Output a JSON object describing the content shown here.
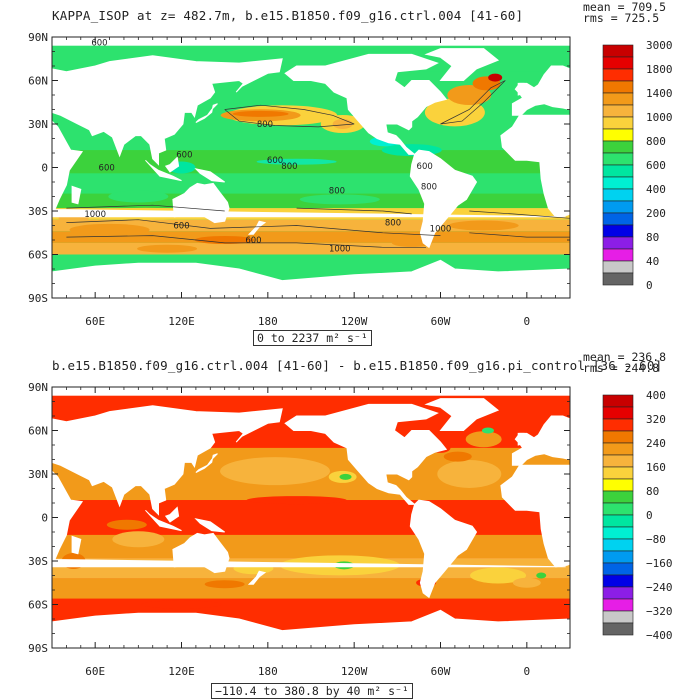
{
  "chart_data": [
    {
      "type": "heatmap",
      "title": "KAPPA_ISOP at z= 482.7m, b.e15.B1850.f09_g16.ctrl.004 [41-60]",
      "stats": {
        "mean": "mean = 709.5",
        "rms": "rms = 725.5"
      },
      "lat_ticks": [
        "90N",
        "60N",
        "30N",
        "0",
        "30S",
        "60S",
        "90S"
      ],
      "lon_ticks": [
        "60E",
        "120E",
        "180",
        "120W",
        "60W",
        "0"
      ],
      "range_label": "0 to 2237 m² s⁻¹",
      "colorbar": {
        "labels": [
          "3000",
          "1800",
          "1400",
          "1000",
          "800",
          "600",
          "400",
          "200",
          "80",
          "40",
          "0"
        ],
        "colors": [
          "#c80000",
          "#e60000",
          "#ff2d00",
          "#f07800",
          "#f29a1a",
          "#f7b33c",
          "#fad23c",
          "#ffff00",
          "#3cd23c",
          "#2de26e",
          "#00e6a0",
          "#00f0d2",
          "#00d2f0",
          "#009bf0",
          "#0064e6",
          "#0000e6",
          "#8c1ee6",
          "#e61ee6",
          "#c8c8c8",
          "#646464"
        ]
      },
      "contour_labels": [
        "600",
        "800",
        "600",
        "600",
        "600",
        "800",
        "600",
        "800",
        "800",
        "1000",
        "600",
        "800",
        "1000",
        "1000",
        "600"
      ]
    },
    {
      "type": "heatmap",
      "title": "b.e15.B1850.f09_g16.ctrl.004 [41-60] - b.e15.B1850.f09_g16.pi_control [36 - 60]",
      "stats": {
        "mean": "mean = 236.8",
        "rms": "rms = 244.8"
      },
      "lat_ticks": [
        "90N",
        "60N",
        "30N",
        "0",
        "30S",
        "60S",
        "90S"
      ],
      "lon_ticks": [
        "60E",
        "120E",
        "180",
        "120W",
        "60W",
        "0"
      ],
      "range_label": "−110.4 to 380.8 by 40 m² s⁻¹",
      "colorbar": {
        "labels": [
          "400",
          "320",
          "240",
          "160",
          "80",
          "0",
          "−80",
          "−160",
          "−240",
          "−320",
          "−400"
        ],
        "colors": [
          "#c80000",
          "#e60000",
          "#ff2d00",
          "#f07800",
          "#f29a1a",
          "#f7b33c",
          "#fad23c",
          "#ffff00",
          "#3cd23c",
          "#2de26e",
          "#00e6a0",
          "#00f0d2",
          "#00d2f0",
          "#009bf0",
          "#0064e6",
          "#0000e6",
          "#8c1ee6",
          "#e61ee6",
          "#c8c8c8",
          "#646464"
        ]
      }
    }
  ]
}
